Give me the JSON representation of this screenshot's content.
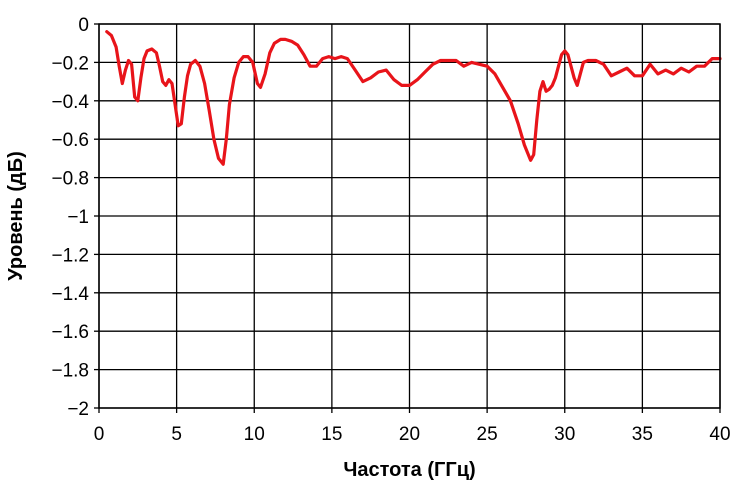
{
  "chart_data": {
    "type": "line",
    "title": "",
    "xlabel": "Частота (ГГц)",
    "ylabel": "Уровень (дБ)",
    "xlim": [
      0,
      40
    ],
    "ylim": [
      -2,
      0
    ],
    "x_ticks": [
      0,
      5,
      10,
      15,
      20,
      25,
      30,
      35,
      40
    ],
    "x_tick_labels": [
      "0",
      "5",
      "10",
      "15",
      "20",
      "25",
      "30",
      "35",
      "40"
    ],
    "y_ticks": [
      0,
      -0.2,
      -0.4,
      -0.6,
      -0.8,
      -1,
      -1.2,
      -1.4,
      -1.6,
      -1.8,
      -2
    ],
    "y_tick_labels": [
      "0",
      "−0.2",
      "−0.4",
      "−0.6",
      "−0.8",
      "−1",
      "−1.2",
      "−1.4",
      "−1.6",
      "−1.8",
      "−2"
    ],
    "grid": true,
    "series_color": "#e8141a",
    "series": [
      {
        "x": [
          0.5,
          0.8,
          1.1,
          1.3,
          1.5,
          1.7,
          1.9,
          2.1,
          2.3,
          2.5,
          2.7,
          2.9,
          3.1,
          3.4,
          3.7,
          3.9,
          4.1,
          4.3,
          4.5,
          4.7,
          4.9,
          5.1,
          5.3,
          5.5,
          5.7,
          5.9,
          6.2,
          6.5,
          6.8,
          7.1,
          7.4,
          7.7,
          8.0,
          8.2,
          8.4,
          8.7,
          9.0,
          9.3,
          9.6,
          9.9,
          10.2,
          10.4,
          10.7,
          11.0,
          11.3,
          11.7,
          12.0,
          12.4,
          12.8,
          13.2,
          13.6,
          14.0,
          14.4,
          14.8,
          15.2,
          15.6,
          16.0,
          16.5,
          17.0,
          17.5,
          18.0,
          18.5,
          19.0,
          19.5,
          20.0,
          20.5,
          21.0,
          21.5,
          22.0,
          22.5,
          23.0,
          23.5,
          24.0,
          24.5,
          25.0,
          25.5,
          26.0,
          26.5,
          27.0,
          27.4,
          27.8,
          28.0,
          28.2,
          28.4,
          28.6,
          28.8,
          29.0,
          29.2,
          29.4,
          29.6,
          29.8,
          30.0,
          30.2,
          30.4,
          30.6,
          30.8,
          31.0,
          31.2,
          31.5,
          32.0,
          32.5,
          33.0,
          33.5,
          34.0,
          34.5,
          35.0,
          35.5,
          36.0,
          36.5,
          37.0,
          37.5,
          38.0,
          38.5,
          39.0,
          39.5,
          40.0
        ],
        "y": [
          -0.04,
          -0.06,
          -0.12,
          -0.22,
          -0.31,
          -0.24,
          -0.19,
          -0.21,
          -0.38,
          -0.4,
          -0.28,
          -0.18,
          -0.14,
          -0.13,
          -0.15,
          -0.22,
          -0.3,
          -0.32,
          -0.29,
          -0.31,
          -0.42,
          -0.53,
          -0.52,
          -0.38,
          -0.27,
          -0.21,
          -0.19,
          -0.22,
          -0.31,
          -0.45,
          -0.6,
          -0.7,
          -0.73,
          -0.6,
          -0.42,
          -0.28,
          -0.2,
          -0.17,
          -0.17,
          -0.2,
          -0.31,
          -0.33,
          -0.26,
          -0.15,
          -0.1,
          -0.08,
          -0.08,
          -0.09,
          -0.11,
          -0.16,
          -0.22,
          -0.22,
          -0.18,
          -0.17,
          -0.18,
          -0.17,
          -0.18,
          -0.24,
          -0.3,
          -0.28,
          -0.25,
          -0.24,
          -0.29,
          -0.32,
          -0.32,
          -0.29,
          -0.25,
          -0.21,
          -0.19,
          -0.19,
          -0.19,
          -0.22,
          -0.2,
          -0.21,
          -0.22,
          -0.26,
          -0.33,
          -0.4,
          -0.52,
          -0.63,
          -0.71,
          -0.68,
          -0.5,
          -0.35,
          -0.3,
          -0.35,
          -0.34,
          -0.32,
          -0.28,
          -0.22,
          -0.16,
          -0.14,
          -0.16,
          -0.22,
          -0.28,
          -0.32,
          -0.26,
          -0.2,
          -0.19,
          -0.19,
          -0.21,
          -0.27,
          -0.25,
          -0.23,
          -0.27,
          -0.27,
          -0.21,
          -0.26,
          -0.24,
          -0.26,
          -0.23,
          -0.25,
          -0.22,
          -0.22,
          -0.18,
          -0.18
        ]
      }
    ]
  }
}
